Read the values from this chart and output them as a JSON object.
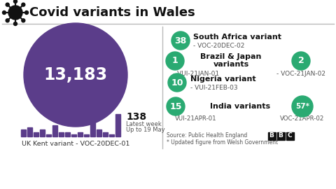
{
  "title": "Covid variants in Wales",
  "bg_color": "#ffffff",
  "purple": "#5b3d8a",
  "green": "#2aaa72",
  "main_number": "13,183",
  "main_label": "UK Kent variant - VOC-20DEC-01",
  "bar_weekly": "138",
  "bar_label1": "Latest week",
  "bar_label2": "Up to 19 May",
  "bar_heights": [
    3,
    4,
    2,
    3,
    1,
    5,
    2,
    2,
    1,
    2,
    1,
    7,
    3,
    2,
    1,
    10
  ],
  "source_text": "Source: Public Health England",
  "source_text2": "* Updated figure from Welsh Government"
}
